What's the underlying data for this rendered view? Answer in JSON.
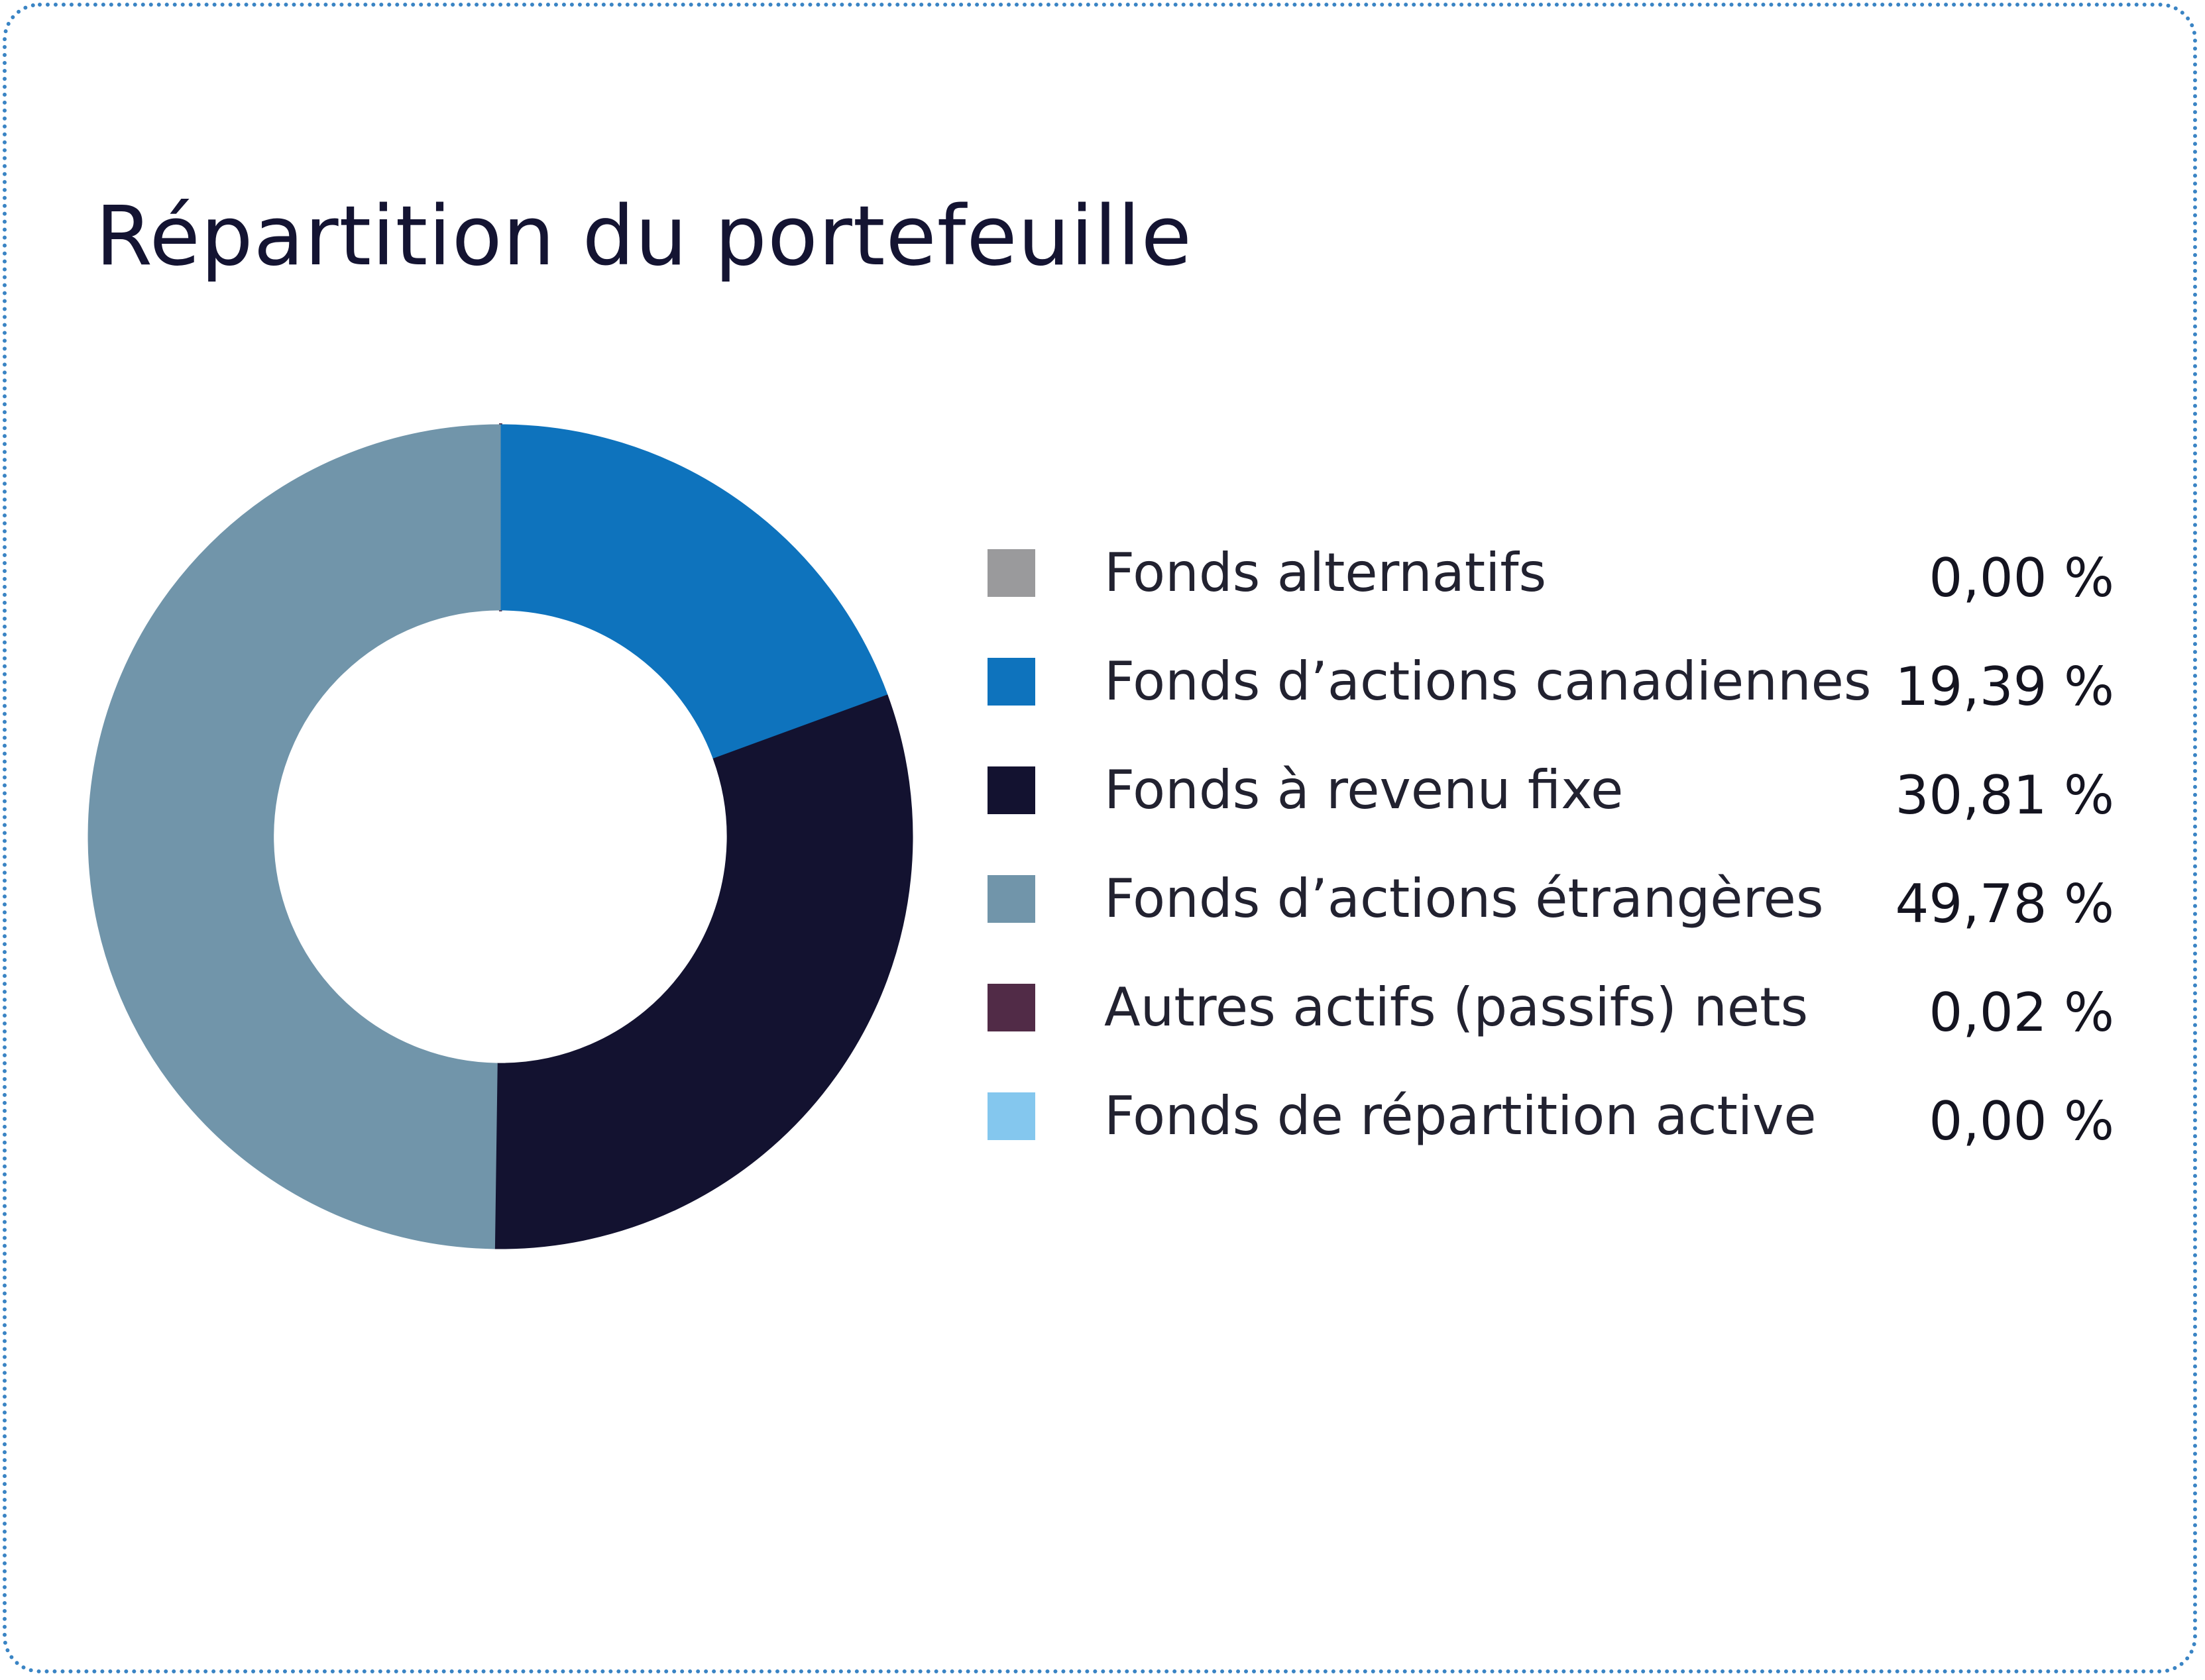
{
  "chart_data": {
    "type": "pie",
    "title": "Répartition du portefeuille",
    "categories": [
      "Fonds alternatifs",
      "Fonds d’actions canadiennes",
      "Fonds à revenu fixe",
      "Fonds d’actions étrangères",
      "Autres actifs (passifs) nets",
      "Fonds de répartition active"
    ],
    "values": [
      0.0,
      19.39,
      30.81,
      49.78,
      0.02,
      0.0
    ],
    "value_labels": [
      "0,00 %",
      "19,39 %",
      "30,81 %",
      "49,78 %",
      "0,02 %",
      "0,00 %"
    ],
    "colors": [
      "#9a9a9c",
      "#0e73bd",
      "#131230",
      "#7195aa",
      "#512b47",
      "#84c7ee"
    ],
    "hole_fraction": 0.55,
    "legend_position": "right"
  }
}
